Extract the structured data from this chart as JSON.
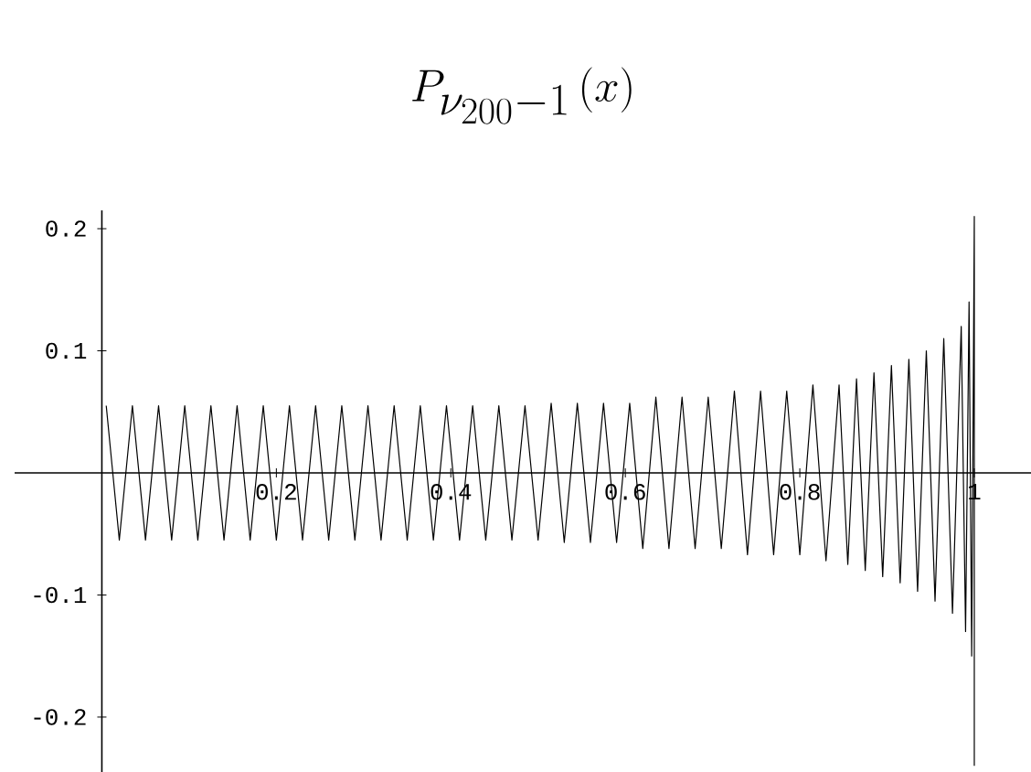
{
  "chart_data": {
    "type": "line",
    "title": "P_{\\nu_{200}-1}\\left(x\\right)",
    "color": "#000000",
    "x": [
      0.005,
      0.02,
      0.035,
      0.05,
      0.065,
      0.08,
      0.095,
      0.11,
      0.125,
      0.14,
      0.155,
      0.17,
      0.185,
      0.2,
      0.215,
      0.23,
      0.245,
      0.26,
      0.275,
      0.29,
      0.305,
      0.32,
      0.335,
      0.35,
      0.365,
      0.38,
      0.395,
      0.41,
      0.425,
      0.44,
      0.455,
      0.47,
      0.485,
      0.5,
      0.515,
      0.53,
      0.545,
      0.56,
      0.575,
      0.59,
      0.605,
      0.62,
      0.635,
      0.65,
      0.665,
      0.68,
      0.695,
      0.71,
      0.725,
      0.74,
      0.755,
      0.77,
      0.785,
      0.8,
      0.815,
      0.83,
      0.845,
      0.855,
      0.865,
      0.875,
      0.885,
      0.895,
      0.905,
      0.915,
      0.925,
      0.935,
      0.945,
      0.955,
      0.965,
      0.975,
      0.985,
      0.99,
      0.994,
      0.997,
      1.0,
      1.0
    ],
    "values": [
      0.055,
      -0.055,
      0.055,
      -0.055,
      0.055,
      -0.055,
      0.055,
      -0.055,
      0.055,
      -0.055,
      0.055,
      -0.055,
      0.055,
      -0.055,
      0.055,
      -0.055,
      0.055,
      -0.055,
      0.055,
      -0.055,
      0.055,
      -0.055,
      0.055,
      -0.055,
      0.055,
      -0.055,
      0.055,
      -0.055,
      0.055,
      -0.055,
      0.055,
      -0.055,
      0.055,
      -0.055,
      0.057,
      -0.057,
      0.057,
      -0.057,
      0.057,
      -0.057,
      0.057,
      -0.062,
      0.062,
      -0.062,
      0.062,
      -0.062,
      0.062,
      -0.062,
      0.067,
      -0.067,
      0.067,
      -0.067,
      0.067,
      -0.067,
      0.072,
      -0.072,
      0.072,
      -0.075,
      0.077,
      -0.08,
      0.082,
      -0.085,
      0.088,
      -0.09,
      0.093,
      -0.097,
      0.1,
      -0.105,
      0.11,
      -0.115,
      0.12,
      -0.13,
      0.14,
      -0.15,
      0.21,
      -0.24
    ],
    "xlim": [
      -0.1,
      1.065
    ],
    "ylim": [
      -0.245,
      0.215
    ],
    "xticks": [
      0.2,
      0.4,
      0.6,
      0.8,
      1
    ],
    "yticks": [
      -0.2,
      -0.1,
      0.1,
      0.2
    ]
  }
}
